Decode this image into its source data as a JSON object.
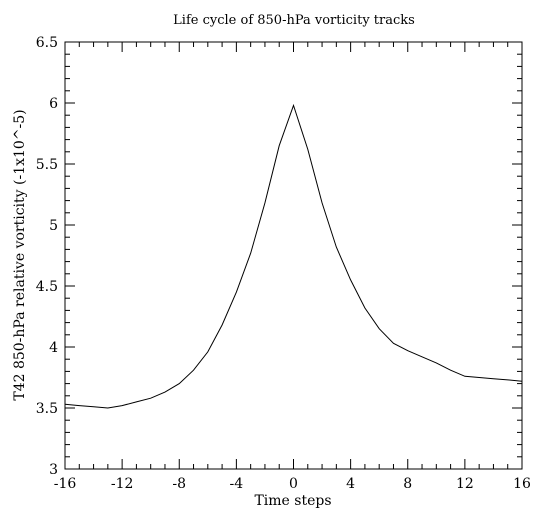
{
  "chart_data": {
    "type": "line",
    "title": "Life cycle of 850-hPa vorticity tracks",
    "xlabel": "Time steps",
    "ylabel": "T42 850-hPa relative vorticity (-1x10^-5)",
    "xlim": [
      -16,
      16
    ],
    "ylim": [
      3,
      6.5
    ],
    "x_ticks": [
      -16,
      -12,
      -8,
      -4,
      0,
      4,
      8,
      12,
      16
    ],
    "x_tick_labels": [
      "-16",
      "-12",
      "-8",
      "-4",
      "0",
      "4",
      "8",
      "12",
      "16"
    ],
    "x_minor_step": 1,
    "y_ticks": [
      3,
      3.5,
      4,
      4.5,
      5,
      5.5,
      6,
      6.5
    ],
    "y_tick_labels": [
      "3",
      "3.5",
      "4",
      "4.5",
      "5",
      "5.5",
      "6",
      "6.5"
    ],
    "y_minor_step": 0.1,
    "grid": false,
    "series": [
      {
        "color": "#000000",
        "x": [
          -16,
          -15,
          -14,
          -13,
          -12,
          -11,
          -10,
          -9,
          -8,
          -7,
          -6,
          -5,
          -4,
          -3,
          -2,
          -1,
          0,
          1,
          2,
          3,
          4,
          5,
          6,
          7,
          8,
          9,
          10,
          11,
          12,
          13,
          14,
          15,
          16
        ],
        "y": [
          3.53,
          3.52,
          3.51,
          3.5,
          3.52,
          3.55,
          3.58,
          3.63,
          3.7,
          3.81,
          3.96,
          4.18,
          4.45,
          4.77,
          5.18,
          5.65,
          5.98,
          5.62,
          5.18,
          4.82,
          4.55,
          4.32,
          4.15,
          4.03,
          3.97,
          3.92,
          3.87,
          3.81,
          3.76,
          3.75,
          3.74,
          3.73,
          3.72
        ]
      }
    ]
  }
}
